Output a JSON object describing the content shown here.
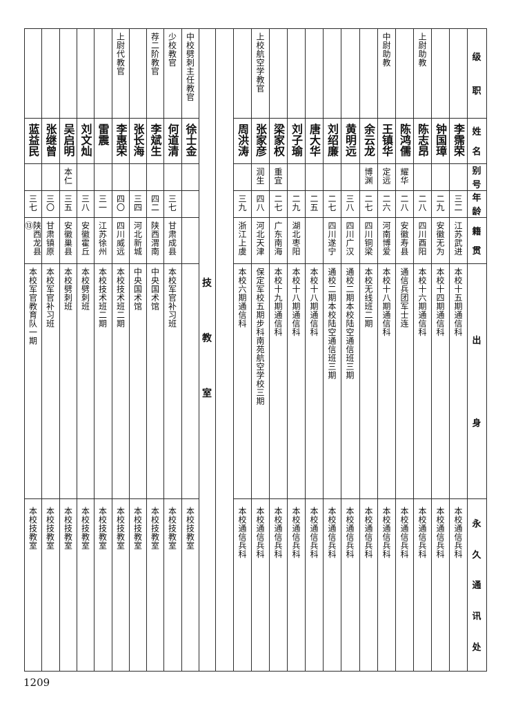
{
  "header_labels": [
    {
      "key": "rank",
      "label": "级职"
    },
    {
      "key": "name",
      "label": "姓名"
    },
    {
      "key": "alias",
      "label": "别号"
    },
    {
      "key": "age",
      "label": "年龄"
    },
    {
      "key": "origin",
      "label": "籍贯"
    },
    {
      "key": "background",
      "label": "出身"
    },
    {
      "key": "address",
      "label": "永久通讯处"
    }
  ],
  "right_section": {
    "persons": [
      {
        "rank": "",
        "name": "李霈荣",
        "alias": "",
        "age": "三二",
        "origin": "江苏武进",
        "background": "本校十五期通信科",
        "address": "本校通信兵科"
      },
      {
        "rank": "",
        "name": "钟国璋",
        "alias": "",
        "age": "二九",
        "origin": "安徽无为",
        "background": "本校十四期通信科",
        "address": "本校通信兵科"
      },
      {
        "rank": "上尉助教",
        "name": "陈志昂",
        "alias": "",
        "age": "二八",
        "origin": "四川酉阳",
        "background": "本校十六期通信科",
        "address": "本校通信兵科"
      },
      {
        "rank": "",
        "name": "陈鸿儒",
        "alias": "耀华",
        "age": "二八",
        "origin": "安徽寿县",
        "background": "通信兵团军士连",
        "address": "本校通信兵科"
      },
      {
        "rank": "中尉助教",
        "name": "王镇华",
        "alias": "定远",
        "age": "二六",
        "origin": "河南博爱",
        "background": "本校十八期通信科",
        "address": "本校通信兵科"
      },
      {
        "rank": "",
        "name": "余云龙",
        "alias": "博渊",
        "age": "二七",
        "origin": "四川铜梁",
        "background": "本校无线班二期",
        "address": "本校通信兵科"
      },
      {
        "rank": "",
        "name": "黄明远",
        "alias": "",
        "age": "三八",
        "origin": "四川广汉",
        "background": "通校二期本校陆空通信班三期",
        "address": "本校通信兵科"
      },
      {
        "rank": "",
        "name": "刘绍廉",
        "alias": "",
        "age": "二七",
        "origin": "四川遂宁",
        "background": "通校二期本校陆空通信班三期",
        "address": "本校通信兵科"
      },
      {
        "rank": "",
        "name": "唐大华",
        "alias": "",
        "age": "二五",
        "origin": "",
        "background": "本校十八期通信科",
        "address": "本校通信兵科"
      },
      {
        "rank": "",
        "name": "刘子瑜",
        "alias": "",
        "age": "二九",
        "origin": "湖北枣阳",
        "background": "本校十八期通信科",
        "address": "本校通信兵科"
      },
      {
        "rank": "",
        "name": "梁家权",
        "alias": "重宜",
        "age": "二七",
        "origin": "广东南海",
        "background": "本校十九期通信科",
        "address": "本校通信兵科"
      },
      {
        "rank": "上校航空学教官",
        "name": "张家彦",
        "alias": "润生",
        "age": "四八",
        "origin": "河北天津",
        "background": "保定军校五期步科南苑航空学校三期",
        "address": "本校通信兵科"
      },
      {
        "rank": "",
        "name": "周洪涛",
        "alias": "",
        "age": "三九",
        "origin": "浙江上虞",
        "background": "本校六期通信科",
        "address": "本校通信兵科"
      }
    ]
  },
  "section_title": "技教室",
  "left_section": {
    "persons": [
      {
        "rank": "中校劈刺主任教官",
        "name": "徐士金",
        "alias": "",
        "age": "",
        "origin": "",
        "background": "",
        "address": "本校技教室"
      },
      {
        "rank": "少校教官",
        "name": "何道清",
        "alias": "",
        "age": "三七",
        "origin": "甘肃成县",
        "background": "本校军官补习班",
        "address": "本校技教室"
      },
      {
        "rank": "荐二阶教官",
        "name": "李斌生",
        "alias": "",
        "age": "四二",
        "origin": "陕西渭南",
        "background": "中央国术馆",
        "address": "本校技教室"
      },
      {
        "rank": "",
        "name": "张长海",
        "alias": "",
        "age": "三四",
        "origin": "河北新城",
        "background": "中央国术馆",
        "address": "本校技教室"
      },
      {
        "rank": "上尉代教官",
        "name": "李惠荣",
        "alias": "",
        "age": "四〇",
        "origin": "四川威远",
        "background": "本校技术班二期",
        "address": "本校技教室"
      },
      {
        "rank": "",
        "name": "雷震",
        "alias": "",
        "age": "三一",
        "origin": "江苏徐州",
        "background": "本校技术班二期",
        "address": "本校技教室"
      },
      {
        "rank": "",
        "name": "刘文灿",
        "alias": "",
        "age": "三八",
        "origin": "安徽霍丘",
        "background": "本校劈刺班",
        "address": "本校技教室"
      },
      {
        "rank": "",
        "name": "吴启明",
        "alias": "本仁",
        "age": "三五",
        "origin": "安徽巢县",
        "background": "本校劈刺班",
        "address": "本校技教室"
      },
      {
        "rank": "",
        "name": "张继曾",
        "alias": "",
        "age": "三〇",
        "origin": "甘肃镇原",
        "background": "本校军官补习班",
        "address": "本校技教室"
      },
      {
        "rank": "",
        "name": "蓝益民",
        "alias": "",
        "age": "三七",
        "origin": "陕西龙县⑬",
        "background": "本校军官教育队一期",
        "address": "本校技教室"
      }
    ]
  },
  "page_number": "1209"
}
